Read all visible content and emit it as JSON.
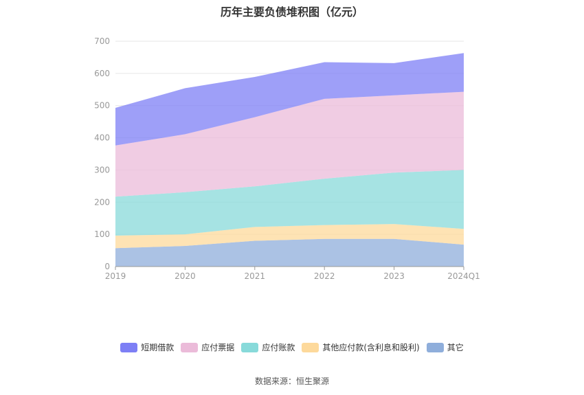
{
  "title": "历年主要负债堆积图（亿元）",
  "source": "数据来源：恒生聚源",
  "chart_data": {
    "type": "area",
    "stacked": true,
    "categories": [
      "2019",
      "2020",
      "2021",
      "2022",
      "2023",
      "2024Q1"
    ],
    "ylim": [
      0,
      700
    ],
    "yticks": [
      0,
      100,
      200,
      300,
      400,
      500,
      600,
      700
    ],
    "grid": true,
    "legend_position": "bottom",
    "series": [
      {
        "name": "其它",
        "color": "#8faedb",
        "values": [
          57,
          64,
          80,
          86,
          86,
          68
        ]
      },
      {
        "name": "其他应付款(含利息和股利)",
        "color": "#fdd99b",
        "values": [
          39,
          36,
          43,
          43,
          46,
          49
        ]
      },
      {
        "name": "应付账款",
        "color": "#88dada",
        "values": [
          121,
          131,
          126,
          144,
          160,
          183
        ]
      },
      {
        "name": "应付票据",
        "color": "#ebbbd9",
        "values": [
          159,
          180,
          215,
          248,
          240,
          243
        ]
      },
      {
        "name": "短期借款",
        "color": "#7d7ff5",
        "values": [
          117,
          143,
          125,
          114,
          100,
          120
        ]
      }
    ],
    "legend_order": [
      "短期借款",
      "应付票据",
      "应付账款",
      "其他应付款(含利息和股利)",
      "其它"
    ]
  }
}
